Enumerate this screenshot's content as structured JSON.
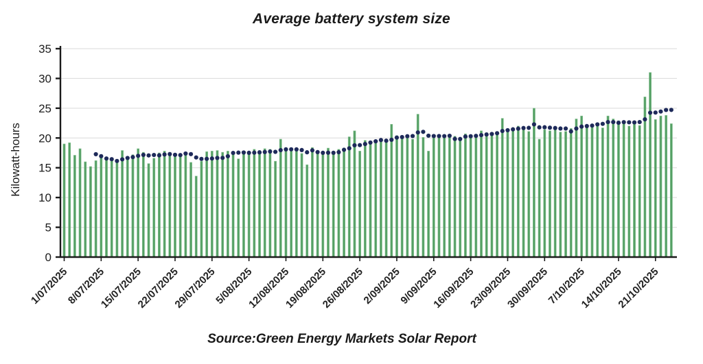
{
  "page": {
    "background": "#ffffff"
  },
  "chart_data": {
    "type": "bar",
    "title": "Average battery system size",
    "ylabel": "Kilowatt-hours",
    "source": "Source:Green Energy Markets Solar Report",
    "ylim": [
      0,
      35
    ],
    "yticks": [
      0,
      5,
      10,
      15,
      20,
      25,
      30,
      35
    ],
    "grid": "horizontal",
    "x_tick_labels": [
      "1/07/2025",
      "8/07/2025",
      "15/07/2025",
      "22/07/2025",
      "29/07/2025",
      "5/08/2025",
      "12/08/2025",
      "19/08/2025",
      "26/08/2025",
      "2/09/2025",
      "9/09/2025",
      "16/09/2025",
      "23/09/2025",
      "30/09/2025",
      "7/10/2025",
      "14/10/2025",
      "21/10/2025"
    ],
    "x_tick_every_n_bars": 7,
    "colors": {
      "bar": "#55a065",
      "bar_light": "#8cc497",
      "dot": "#1e2a5a",
      "grid": "#d9d9d9",
      "axis": "#1a1a1a",
      "tick_text": "#1c1c1c"
    },
    "series": [
      {
        "name": "daily average battery system size (kWh)",
        "type": "bar",
        "values": [
          19.0,
          19.2,
          17.1,
          18.2,
          16.0,
          15.2,
          16.2,
          16.7,
          16.5,
          16.3,
          16.1,
          17.9,
          16.8,
          17.2,
          18.2,
          17.6,
          15.7,
          16.6,
          17.5,
          17.8,
          17.6,
          17.4,
          17.3,
          17.5,
          15.9,
          13.6,
          16.1,
          17.7,
          17.8,
          17.9,
          17.6,
          17.8,
          17.5,
          16.5,
          17.8,
          17.5,
          18.1,
          17.9,
          18.2,
          18.1,
          16.1,
          19.8,
          18.4,
          18.2,
          17.8,
          17.4,
          15.5,
          18.4,
          17.7,
          17.6,
          18.3,
          17.7,
          18.1,
          18.3,
          20.2,
          21.2,
          17.8,
          19.6,
          19.4,
          19.6,
          19.8,
          19.4,
          22.3,
          20.4,
          20.2,
          20.4,
          19.8,
          24.0,
          20.1,
          17.8,
          20.0,
          20.2,
          20.3,
          20.2,
          20.3,
          20.0,
          20.7,
          20.4,
          20.6,
          21.2,
          20.9,
          20.9,
          20.9,
          23.3,
          21.3,
          21.7,
          22.0,
          21.6,
          21.1,
          25.0,
          19.8,
          21.4,
          21.2,
          21.6,
          21.0,
          21.1,
          21.6,
          23.2,
          23.7,
          21.8,
          22.2,
          22.4,
          21.7,
          23.7,
          23.2,
          22.9,
          22.5,
          22.0,
          22.3,
          22.1,
          26.9,
          31.0,
          23.1,
          23.7,
          23.8,
          22.4
        ]
      },
      {
        "name": "7-day moving average (dotted line)",
        "type": "dotted-line",
        "window": 7,
        "derived_from": "trailing mean of bar values"
      }
    ]
  }
}
